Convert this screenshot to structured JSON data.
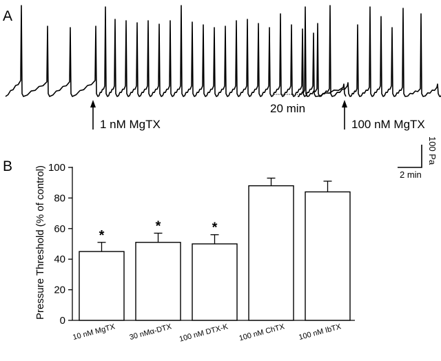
{
  "panel_a": {
    "label": "A",
    "gap_label": "20 min",
    "arrow1_label": "1 nM MgTX",
    "arrow2_label": "100 nM MgTX",
    "scale_y_label": "100 Pa",
    "scale_x_label": "2 min"
  },
  "panel_b": {
    "label": "B"
  },
  "chart_data": {
    "type": "bar",
    "title": "",
    "ylabel": "Pressure Threshold (% of control)",
    "xlabel": "",
    "ylim": [
      0,
      100
    ],
    "yticks": [
      "0",
      "20",
      "40",
      "60",
      "80",
      "100"
    ],
    "categories": [
      "10 nM MgTX",
      "30 nMα-DTX",
      "100 nM DTX-K",
      "100 nM ChTX",
      "100 nM IbTX"
    ],
    "values": [
      45,
      51,
      50,
      88,
      84
    ],
    "errors": [
      6,
      6,
      6,
      5,
      7
    ],
    "significance": [
      "*",
      "*",
      "*",
      "",
      ""
    ],
    "grid": false
  }
}
